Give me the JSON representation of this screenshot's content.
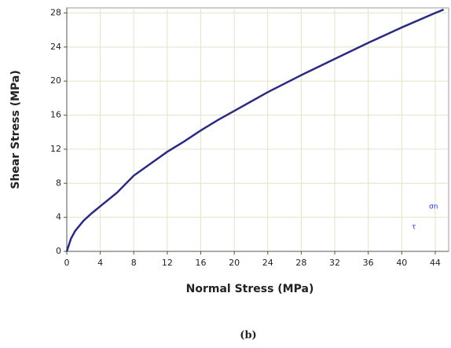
{
  "chart_data": {
    "type": "line",
    "x_label": "Normal Stress (MPa)",
    "y_label": "Shear Stress (MPa)",
    "caption": "(b)",
    "inset_labels": [
      "σn",
      "τ"
    ],
    "series": [
      {
        "color": "#2a2a82",
        "x": [
          0,
          0.5,
          1,
          2,
          3,
          4,
          6,
          8,
          10,
          12,
          14,
          16,
          18,
          20,
          24,
          28,
          32,
          36,
          40,
          44,
          45
        ],
        "values": [
          0,
          1.5,
          2.4,
          3.6,
          4.5,
          5.3,
          6.9,
          8.9,
          10.3,
          11.7,
          12.9,
          14.2,
          15.4,
          16.5,
          18.7,
          20.7,
          22.6,
          24.5,
          26.3,
          28.0,
          28.4
        ]
      }
    ],
    "xlim": [
      0,
      45.6
    ],
    "ylim": [
      0,
      28.6
    ],
    "xticks": [
      0,
      4,
      8,
      12,
      16,
      20,
      24,
      28,
      32,
      36,
      40,
      44
    ],
    "yticks": [
      0,
      4,
      8,
      12,
      16,
      20,
      24,
      28
    ],
    "grid": true
  }
}
